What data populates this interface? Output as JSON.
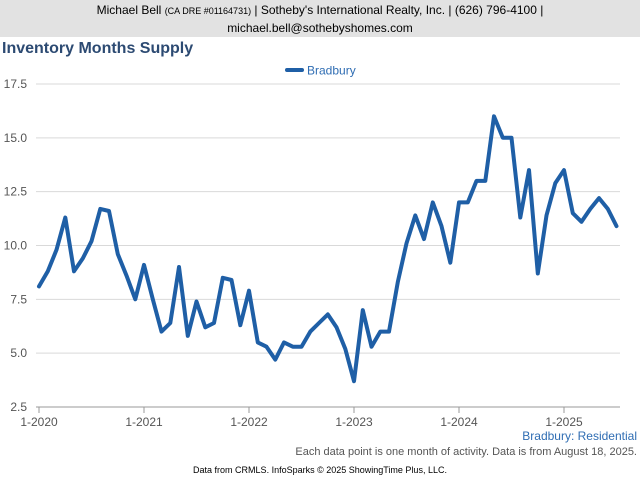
{
  "header": {
    "line1_name": "Michael Bell",
    "line1_license": "(CA DRE #01164731)",
    "line1_rest": "| Sotheby's International Realty, Inc. | (626) 796-4100 |",
    "line2": "michael.bell@sothebyshomes.com"
  },
  "chart_data": {
    "type": "line",
    "title": "Inventory Months Supply",
    "xlabel": "",
    "ylabel": "",
    "ylim": [
      2.5,
      17.5
    ],
    "yticks": [
      "2.5",
      "5.0",
      "7.5",
      "10.0",
      "12.5",
      "15.0",
      "17.5"
    ],
    "xticks": [
      "1-2020",
      "1-2021",
      "1-2022",
      "1-2023",
      "1-2024",
      "1-2025"
    ],
    "grid": true,
    "legend": "top-center",
    "series_color": "#1f5fa6",
    "series": [
      {
        "name": "Bradbury",
        "values": [
          8.1,
          8.8,
          9.8,
          11.3,
          8.8,
          9.4,
          10.2,
          11.7,
          11.6,
          9.6,
          8.6,
          7.5,
          9.1,
          7.5,
          6.0,
          6.4,
          9.0,
          5.8,
          7.4,
          6.2,
          6.4,
          8.5,
          8.4,
          6.3,
          7.9,
          5.5,
          5.3,
          4.7,
          5.5,
          5.3,
          5.3,
          6.0,
          6.4,
          6.8,
          6.2,
          5.2,
          3.7,
          7.0,
          5.3,
          6.0,
          6.0,
          8.3,
          10.1,
          11.4,
          10.3,
          12.0,
          10.9,
          9.2,
          12.0,
          12.0,
          13.0,
          13.0,
          16.0,
          15.0,
          15.0,
          11.3,
          13.5,
          8.7,
          11.4,
          12.9,
          13.5,
          11.5,
          11.1,
          11.7,
          12.2,
          11.7,
          10.9
        ]
      }
    ]
  },
  "series_caption": "Bradbury: Residential",
  "footnote": "Each data point is one month of activity. Data is from August 18, 2025.",
  "credit": "Data from CRMLS. InfoSparks © 2025 ShowingTime Plus, LLC."
}
